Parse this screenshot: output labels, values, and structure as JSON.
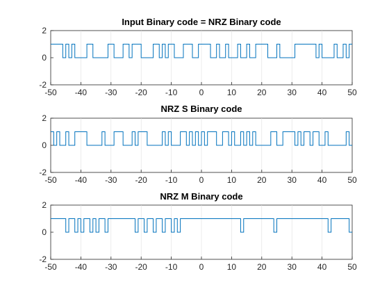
{
  "figure": {
    "background": "#ffffff",
    "line_color": "#0072bd"
  },
  "chart_data": [
    {
      "type": "line",
      "title": "Input Binary code = NRZ Binary code",
      "xlim": [
        -50,
        50
      ],
      "ylim": [
        -2,
        2
      ],
      "xticks": [
        -50,
        -40,
        -30,
        -20,
        -10,
        0,
        10,
        20,
        30,
        40,
        50
      ],
      "yticks": [
        2,
        0,
        -2
      ],
      "grid": true,
      "step_start": -50,
      "step_width": 1,
      "values": [
        1,
        1,
        1,
        1,
        0,
        1,
        0,
        1,
        0,
        0,
        0,
        0,
        1,
        1,
        0,
        0,
        0,
        0,
        0,
        1,
        1,
        0,
        0,
        0,
        1,
        1,
        0,
        1,
        1,
        1,
        0,
        0,
        0,
        0,
        1,
        1,
        0,
        1,
        0,
        1,
        1,
        0,
        0,
        0,
        1,
        1,
        1,
        0,
        0,
        1,
        1,
        1,
        1,
        0,
        0,
        1,
        0,
        0,
        1,
        0,
        0,
        0,
        1,
        0,
        0,
        1,
        0,
        0,
        1,
        1,
        1,
        1,
        0,
        0,
        0,
        1,
        0,
        0,
        0,
        0,
        0,
        1,
        1,
        1,
        1,
        1,
        1,
        1,
        0,
        1,
        0,
        0,
        0,
        0,
        1,
        0,
        0,
        1,
        0,
        1
      ]
    },
    {
      "type": "line",
      "title": "NRZ S Binary code",
      "xlim": [
        -50,
        50
      ],
      "ylim": [
        -2,
        2
      ],
      "xticks": [
        -50,
        -40,
        -30,
        -20,
        -10,
        0,
        10,
        20,
        30,
        40,
        50
      ],
      "yticks": [
        2,
        0,
        -2
      ],
      "grid": true,
      "step_start": -50,
      "step_width": 1,
      "values": [
        1,
        0,
        1,
        0,
        0,
        1,
        0,
        0,
        1,
        1,
        1,
        1,
        0,
        0,
        0,
        0,
        0,
        1,
        0,
        0,
        0,
        1,
        1,
        1,
        0,
        0,
        0,
        1,
        0,
        1,
        1,
        1,
        0,
        0,
        0,
        0,
        0,
        1,
        0,
        1,
        0,
        0,
        0,
        1,
        1,
        0,
        1,
        0,
        1,
        0,
        1,
        0,
        1,
        1,
        1,
        0,
        0,
        1,
        1,
        0,
        1,
        0,
        0,
        1,
        0,
        1,
        0,
        1,
        0,
        0,
        0,
        0,
        0,
        1,
        1,
        0,
        0,
        1,
        1,
        1,
        1,
        0,
        1,
        0,
        1,
        1,
        0,
        1,
        1,
        0,
        0,
        1,
        0,
        0,
        0,
        0,
        0,
        0,
        1,
        0
      ]
    },
    {
      "type": "line",
      "title": "NRZ M Binary code",
      "xlim": [
        -50,
        50
      ],
      "ylim": [
        -2,
        2
      ],
      "xticks": [
        -50,
        -40,
        -30,
        -20,
        -10,
        0,
        10,
        20,
        30,
        40,
        50
      ],
      "yticks": [
        2,
        0,
        -2
      ],
      "grid": true,
      "step_start": -50,
      "step_width": 1,
      "values": [
        1,
        1,
        1,
        1,
        1,
        0,
        1,
        1,
        0,
        1,
        0,
        1,
        1,
        0,
        1,
        0,
        1,
        1,
        0,
        1,
        1,
        1,
        1,
        1,
        1,
        1,
        1,
        1,
        0,
        1,
        1,
        0,
        1,
        1,
        0,
        1,
        1,
        0,
        1,
        1,
        0,
        1,
        0,
        1,
        1,
        1,
        1,
        1,
        1,
        1,
        1,
        1,
        1,
        1,
        1,
        1,
        1,
        1,
        1,
        1,
        1,
        1,
        1,
        0,
        1,
        1,
        1,
        1,
        1,
        1,
        1,
        1,
        1,
        1,
        0,
        1,
        1,
        1,
        1,
        1,
        1,
        1,
        1,
        1,
        1,
        1,
        1,
        1,
        1,
        1,
        1,
        1,
        0,
        1,
        1,
        1,
        1,
        1,
        1,
        0
      ]
    }
  ]
}
